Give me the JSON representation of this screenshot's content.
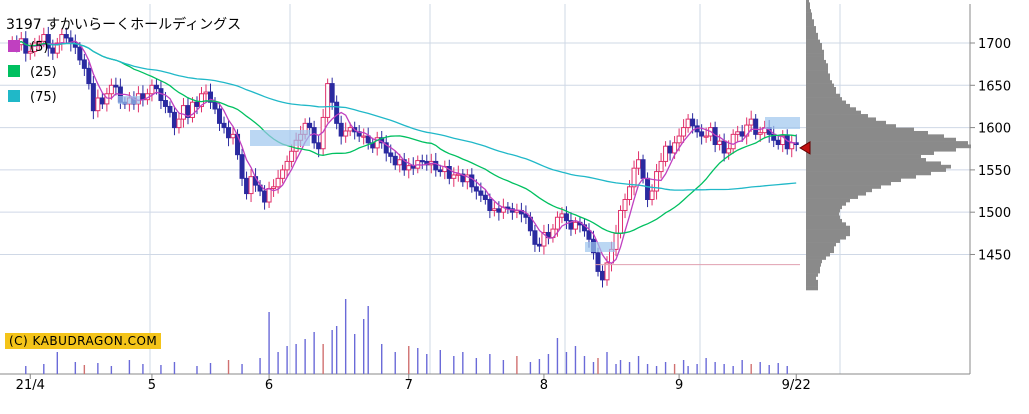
{
  "chart_data": {
    "type": "candlestick",
    "title": "3197 すかいらーくホールディングス",
    "legend": [
      {
        "label": "(5)",
        "color": "#c040c0"
      },
      {
        "label": "(25)",
        "color": "#00c060"
      },
      {
        "label": "(75)",
        "color": "#20b8c8"
      }
    ],
    "y_ticks": [
      1700,
      1650,
      1600,
      1550,
      1500,
      1450
    ],
    "ylim": [
      1391,
      1743
    ],
    "x_tick_labels": [
      "21/4",
      "5",
      "6",
      "7",
      "8",
      "9",
      "9/22"
    ],
    "x_tick_days": [
      4,
      31,
      57,
      88,
      118,
      148,
      174
    ],
    "num_days": 176,
    "closes": [
      1702,
      1698,
      1705,
      1688,
      1690,
      1700,
      1702,
      1710,
      1694,
      1688,
      1700,
      1710,
      1706,
      1700,
      1695,
      1680,
      1670,
      1652,
      1620,
      1635,
      1628,
      1640,
      1650,
      1648,
      1630,
      1628,
      1635,
      1628,
      1640,
      1633,
      1640,
      1650,
      1646,
      1632,
      1625,
      1618,
      1600,
      1610,
      1626,
      1612,
      1630,
      1625,
      1640,
      1642,
      1630,
      1622,
      1605,
      1600,
      1588,
      1592,
      1568,
      1540,
      1522,
      1542,
      1532,
      1525,
      1512,
      1528,
      1530,
      1540,
      1550,
      1560,
      1572,
      1585,
      1592,
      1605,
      1600,
      1582,
      1575,
      1612,
      1652,
      1630,
      1605,
      1590,
      1596,
      1600,
      1595,
      1590,
      1590,
      1582,
      1576,
      1588,
      1582,
      1570,
      1566,
      1556,
      1562,
      1550,
      1555,
      1552,
      1561,
      1560,
      1556,
      1560,
      1550,
      1548,
      1554,
      1540,
      1544,
      1545,
      1536,
      1544,
      1530,
      1525,
      1520,
      1515,
      1502,
      1504,
      1500,
      1506,
      1504,
      1500,
      1502,
      1498,
      1494,
      1478,
      1462,
      1460,
      1476,
      1470,
      1480,
      1494,
      1498,
      1490,
      1480,
      1488,
      1485,
      1478,
      1468,
      1452,
      1430,
      1420,
      1440,
      1456,
      1475,
      1502,
      1515,
      1530,
      1552,
      1562,
      1540,
      1515,
      1525,
      1548,
      1560,
      1578,
      1570,
      1582,
      1590,
      1600,
      1610,
      1602,
      1595,
      1590,
      1590,
      1600,
      1580,
      1584,
      1570,
      1575,
      1592,
      1595,
      1590,
      1603,
      1610,
      1592,
      1594,
      1600,
      1592,
      1585,
      1580,
      1590,
      1575,
      1582,
      1580
    ],
    "vol_days": [
      3,
      7,
      10,
      14,
      16,
      19,
      22,
      26,
      29,
      33,
      36,
      41,
      44,
      48,
      51,
      55,
      57,
      59,
      61,
      63,
      65,
      67,
      69,
      71,
      72,
      74,
      76,
      78,
      79,
      82,
      85,
      88,
      90,
      92,
      95,
      98,
      100,
      103,
      106,
      109,
      112,
      115,
      117,
      119,
      121,
      123,
      125,
      127,
      129,
      130,
      132,
      134,
      135,
      137,
      139,
      141,
      143,
      145,
      147,
      149,
      150,
      152,
      154,
      156,
      158,
      160,
      162,
      164,
      166,
      168,
      170,
      172
    ],
    "vol_vals": [
      8,
      10,
      22,
      12,
      9,
      11,
      8,
      14,
      10,
      9,
      12,
      8,
      11,
      14,
      10,
      16,
      62,
      22,
      28,
      30,
      35,
      42,
      30,
      44,
      48,
      75,
      40,
      55,
      68,
      30,
      22,
      28,
      26,
      20,
      24,
      18,
      22,
      16,
      20,
      14,
      18,
      12,
      15,
      20,
      36,
      22,
      28,
      18,
      12,
      16,
      22,
      10,
      14,
      12,
      18,
      10,
      8,
      12,
      10,
      14,
      8,
      10,
      16,
      12,
      10,
      8,
      14,
      10,
      12,
      9,
      11,
      8
    ],
    "profile": {
      "start": 1408,
      "step": 4,
      "widths": [
        12,
        12,
        12,
        10,
        12,
        14,
        14,
        15,
        16,
        20,
        24,
        28,
        28,
        30,
        34,
        40,
        44,
        44,
        44,
        40,
        36,
        34,
        33,
        34,
        36,
        40,
        44,
        52,
        60,
        66,
        75,
        85,
        95,
        110,
        125,
        140,
        145,
        135,
        120,
        115,
        128,
        150,
        165,
        162,
        150,
        138,
        122,
        108,
        90,
        80,
        70,
        62,
        55,
        50,
        44,
        40,
        36,
        34,
        30,
        30,
        28,
        26,
        24,
        24,
        22,
        22,
        22,
        20,
        18,
        18,
        18,
        16,
        16,
        14,
        12,
        12,
        10,
        10,
        8,
        8,
        6,
        6,
        5,
        4,
        4,
        3,
        3,
        2
      ]
    },
    "markers": [
      {
        "type": "price_arrow",
        "value": 1576
      },
      {
        "type": "support_line",
        "value": 1438
      }
    ]
  },
  "credit": "(C) KABUDRAGON.COM"
}
